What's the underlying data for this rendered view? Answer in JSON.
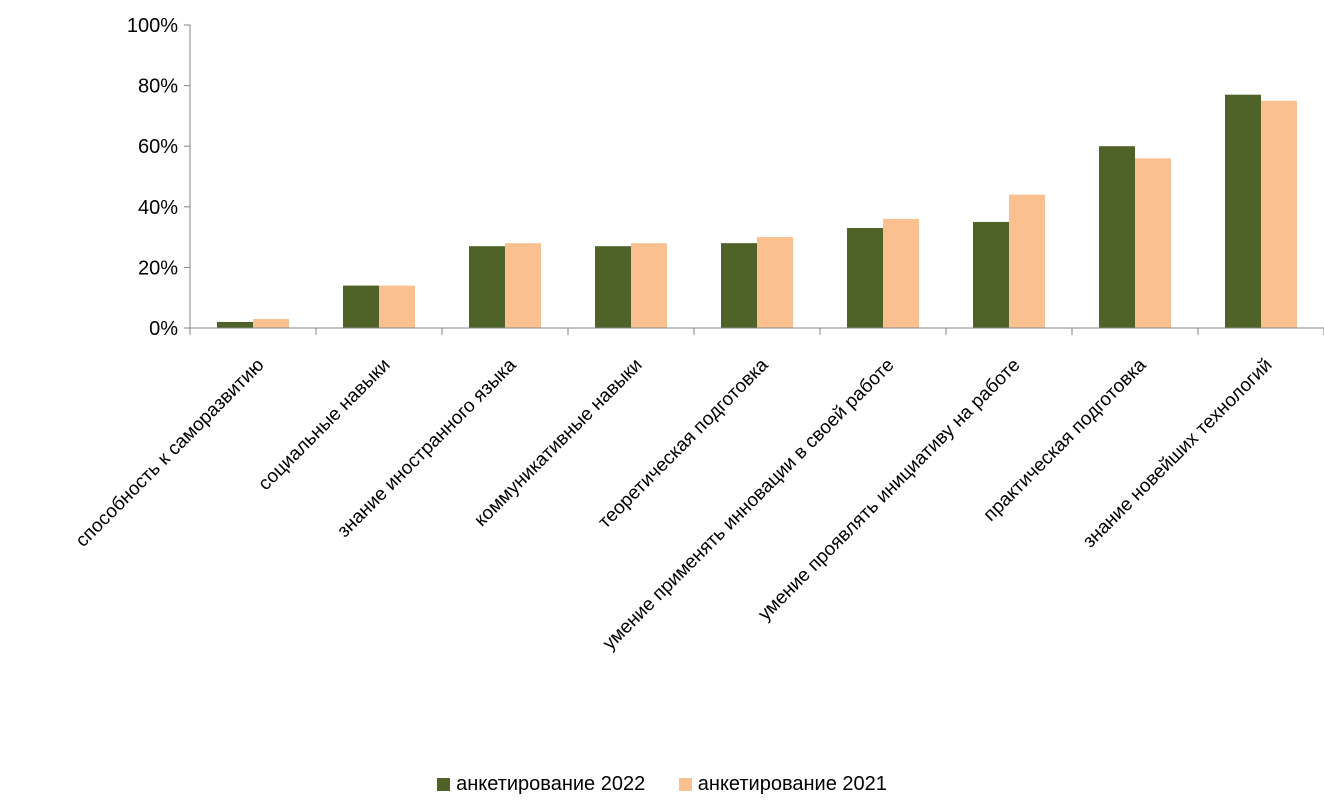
{
  "chart_data": {
    "type": "bar",
    "categories": [
      "способность к саморазвитию",
      "социальные навыки",
      "знание иностранного языка",
      "коммуникативные навыки",
      "теоретическая подготовка",
      "умение применять инновации в своей работе",
      "умение проявлять инициативу на работе",
      "практическая подготовка",
      "знание новейших технологий"
    ],
    "series": [
      {
        "name": "анкетирование 2022",
        "color": "#4f6228",
        "values": [
          0.02,
          0.14,
          0.27,
          0.27,
          0.28,
          0.33,
          0.35,
          0.6,
          0.77
        ]
      },
      {
        "name": "анкетирование 2021",
        "color": "#fac090",
        "values": [
          0.03,
          0.14,
          0.28,
          0.28,
          0.3,
          0.36,
          0.44,
          0.56,
          0.75
        ]
      }
    ],
    "yticks": [
      "0%",
      "20%",
      "40%",
      "60%",
      "80%",
      "100%"
    ],
    "ylim": [
      0,
      1
    ],
    "grid": false,
    "legend_position": "bottom",
    "title": "",
    "xlabel": "",
    "ylabel": ""
  }
}
